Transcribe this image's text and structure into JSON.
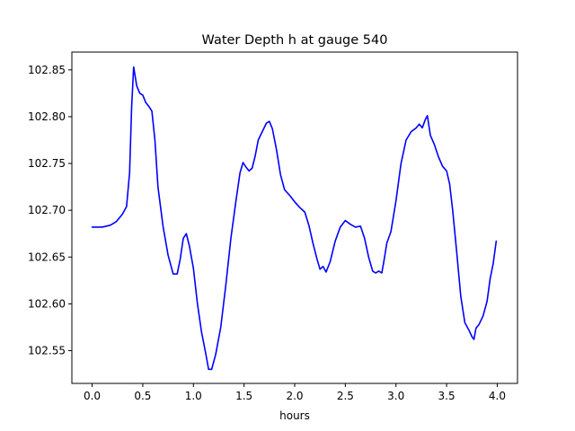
{
  "chart_data": {
    "type": "line",
    "title": "Water Depth h at gauge 540",
    "xlabel": "hours",
    "ylabel": "",
    "xlim": [
      -0.2,
      4.2
    ],
    "ylim": [
      102.515,
      102.869
    ],
    "x_ticks": [
      0.0,
      0.5,
      1.0,
      1.5,
      2.0,
      2.5,
      3.0,
      3.5,
      4.0
    ],
    "x_tick_labels": [
      "0.0",
      "0.5",
      "1.0",
      "1.5",
      "2.0",
      "2.5",
      "3.0",
      "3.5",
      "4.0"
    ],
    "y_ticks": [
      102.55,
      102.6,
      102.65,
      102.7,
      102.75,
      102.8,
      102.85
    ],
    "y_tick_labels": [
      "102.55",
      "102.60",
      "102.65",
      "102.70",
      "102.75",
      "102.80",
      "102.85"
    ],
    "grid": false,
    "series": [
      {
        "color": "#0000ff",
        "points": [
          [
            0.0,
            102.682
          ],
          [
            0.1,
            102.682
          ],
          [
            0.18,
            102.684
          ],
          [
            0.24,
            102.688
          ],
          [
            0.3,
            102.696
          ],
          [
            0.34,
            102.704
          ],
          [
            0.37,
            102.74
          ],
          [
            0.39,
            102.81
          ],
          [
            0.41,
            102.853
          ],
          [
            0.44,
            102.833
          ],
          [
            0.47,
            102.825
          ],
          [
            0.5,
            102.823
          ],
          [
            0.53,
            102.815
          ],
          [
            0.56,
            102.811
          ],
          [
            0.59,
            102.806
          ],
          [
            0.62,
            102.775
          ],
          [
            0.65,
            102.725
          ],
          [
            0.7,
            102.683
          ],
          [
            0.75,
            102.652
          ],
          [
            0.8,
            102.632
          ],
          [
            0.84,
            102.632
          ],
          [
            0.87,
            102.648
          ],
          [
            0.9,
            102.67
          ],
          [
            0.93,
            102.675
          ],
          [
            0.96,
            102.662
          ],
          [
            1.0,
            102.638
          ],
          [
            1.04,
            102.6
          ],
          [
            1.08,
            102.57
          ],
          [
            1.12,
            102.548
          ],
          [
            1.15,
            102.53
          ],
          [
            1.18,
            102.53
          ],
          [
            1.22,
            102.546
          ],
          [
            1.27,
            102.575
          ],
          [
            1.32,
            102.62
          ],
          [
            1.37,
            102.67
          ],
          [
            1.42,
            102.71
          ],
          [
            1.46,
            102.74
          ],
          [
            1.49,
            102.751
          ],
          [
            1.52,
            102.746
          ],
          [
            1.55,
            102.742
          ],
          [
            1.58,
            102.745
          ],
          [
            1.61,
            102.758
          ],
          [
            1.64,
            102.775
          ],
          [
            1.68,
            102.784
          ],
          [
            1.72,
            102.793
          ],
          [
            1.75,
            102.795
          ],
          [
            1.78,
            102.787
          ],
          [
            1.82,
            102.765
          ],
          [
            1.86,
            102.738
          ],
          [
            1.9,
            102.722
          ],
          [
            1.95,
            102.716
          ],
          [
            2.0,
            102.709
          ],
          [
            2.05,
            102.703
          ],
          [
            2.1,
            102.698
          ],
          [
            2.14,
            102.684
          ],
          [
            2.18,
            102.665
          ],
          [
            2.22,
            102.648
          ],
          [
            2.25,
            102.637
          ],
          [
            2.28,
            102.64
          ],
          [
            2.31,
            102.634
          ],
          [
            2.35,
            102.645
          ],
          [
            2.4,
            102.667
          ],
          [
            2.45,
            102.682
          ],
          [
            2.5,
            102.689
          ],
          [
            2.55,
            102.685
          ],
          [
            2.6,
            102.682
          ],
          [
            2.65,
            102.683
          ],
          [
            2.69,
            102.67
          ],
          [
            2.73,
            102.65
          ],
          [
            2.77,
            102.635
          ],
          [
            2.8,
            102.633
          ],
          [
            2.83,
            102.635
          ],
          [
            2.86,
            102.633
          ],
          [
            2.88,
            102.645
          ],
          [
            2.91,
            102.665
          ],
          [
            2.95,
            102.677
          ],
          [
            3.0,
            102.71
          ],
          [
            3.05,
            102.75
          ],
          [
            3.1,
            102.775
          ],
          [
            3.15,
            102.784
          ],
          [
            3.2,
            102.788
          ],
          [
            3.23,
            102.792
          ],
          [
            3.26,
            102.788
          ],
          [
            3.29,
            102.797
          ],
          [
            3.31,
            102.801
          ],
          [
            3.34,
            102.78
          ],
          [
            3.38,
            102.77
          ],
          [
            3.42,
            102.757
          ],
          [
            3.46,
            102.747
          ],
          [
            3.5,
            102.742
          ],
          [
            3.53,
            102.728
          ],
          [
            3.56,
            102.7
          ],
          [
            3.6,
            102.655
          ],
          [
            3.64,
            102.608
          ],
          [
            3.68,
            102.58
          ],
          [
            3.72,
            102.572
          ],
          [
            3.75,
            102.565
          ],
          [
            3.77,
            102.562
          ],
          [
            3.79,
            102.574
          ],
          [
            3.82,
            102.578
          ],
          [
            3.86,
            102.587
          ],
          [
            3.9,
            102.603
          ],
          [
            3.93,
            102.627
          ],
          [
            3.96,
            102.643
          ],
          [
            3.99,
            102.667
          ]
        ]
      }
    ]
  }
}
